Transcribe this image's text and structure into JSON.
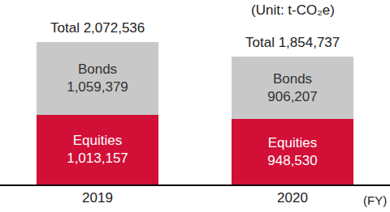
{
  "chart_data": {
    "type": "bar",
    "stacked": true,
    "subtitle": "(Unit: t-CO₂e)",
    "x_label": "(FY)",
    "categories": [
      "2019",
      "2020"
    ],
    "series": [
      {
        "name": "Equities",
        "color": "#d20f37",
        "values": [
          1013157,
          948530
        ],
        "value_labels": [
          "1,013,157",
          "948,530"
        ]
      },
      {
        "name": "Bonds",
        "color": "#c8c8c8",
        "values": [
          1059379,
          906207
        ],
        "value_labels": [
          "1,059,379",
          "906,207"
        ]
      }
    ],
    "annotations": [
      "Total 2,072,536",
      "Total 1,854,737"
    ],
    "ylim": [
      0,
      2600000
    ],
    "grid": false,
    "data_labels": true,
    "tick_labels": "x"
  }
}
